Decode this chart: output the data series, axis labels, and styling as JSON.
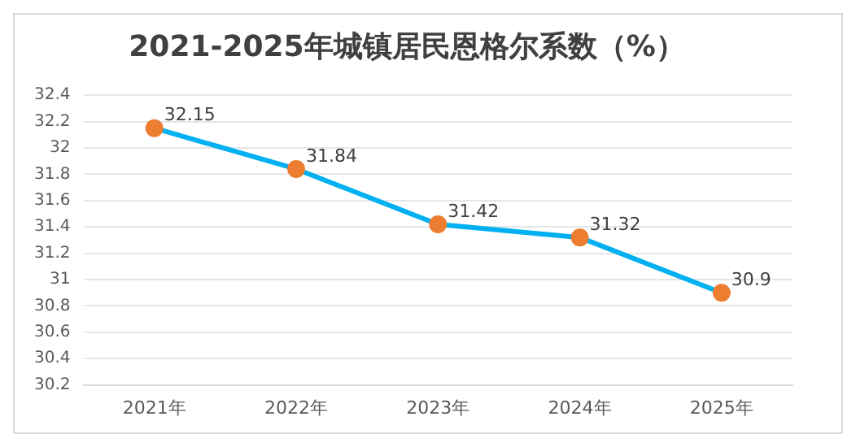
{
  "chart_data": {
    "type": "line",
    "title": "2021-2025年城镇居民恩格尔系数（%）",
    "categories": [
      "2021年",
      "2022年",
      "2023年",
      "2024年",
      "2025年"
    ],
    "series": [
      {
        "color": "#00b0f0",
        "colors": [
          "#ed7d31",
          "#ed7d31",
          "#ed7d31",
          "#ed7d31",
          "#ed7d31"
        ],
        "values": [
          32.15,
          31.84,
          31.42,
          31.32,
          30.9
        ]
      }
    ],
    "marker": "circle",
    "ylim": [
      30.2,
      32.4
    ],
    "yticks": [
      30.2,
      30.4,
      30.6,
      30.8,
      31,
      31.2,
      31.4,
      31.6,
      31.8,
      32,
      32.2,
      32.4
    ],
    "grid": "y",
    "data_labels": true,
    "legend": false
  }
}
